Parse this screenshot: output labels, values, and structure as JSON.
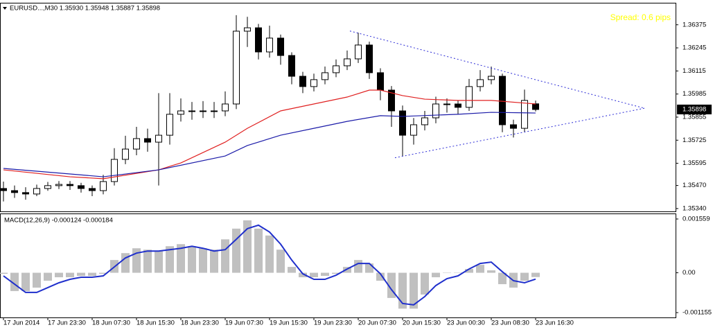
{
  "chart_data": [
    {
      "type": "candlestick",
      "title": "EURUSD...,M30  1.35930 1.35948 1.35887 1.35898",
      "annotation": "Spread: 0.6 pips",
      "annotation_color": "#ffff00",
      "x": [
        0,
        4,
        8,
        12,
        16,
        20,
        24,
        28,
        32,
        36,
        40,
        44,
        48,
        52,
        56,
        60,
        64,
        68,
        72,
        76,
        80,
        84,
        88,
        92,
        96,
        100,
        104,
        108,
        112,
        116,
        120,
        124,
        128,
        132,
        136,
        140,
        144,
        148,
        152,
        156,
        160,
        164,
        168,
        172,
        176,
        180,
        184,
        188,
        192
      ],
      "open": [
        1.35453,
        1.35441,
        1.3543,
        1.35422,
        1.35453,
        1.35469,
        1.35476,
        1.35469,
        1.35453,
        1.35441,
        1.35492,
        1.35617,
        1.35675,
        1.35734,
        1.35714,
        1.35753,
        1.35871,
        1.3589,
        1.3589,
        1.3589,
        1.3589,
        1.35929,
        1.36339,
        1.36358,
        1.36222,
        1.363,
        1.36202,
        1.36085,
        1.36027,
        1.36066,
        1.36105,
        1.36144,
        1.36183,
        1.36261,
        1.36105,
        1.36007,
        1.3589,
        1.35753,
        1.35812,
        1.35851,
        1.35929,
        1.35929,
        1.3591,
        1.36027,
        1.36066,
        1.36085,
        1.35812,
        1.35792,
        1.3593
      ],
      "high": [
        1.35492,
        1.3547,
        1.3546,
        1.35475,
        1.3549,
        1.35495,
        1.35495,
        1.35485,
        1.3547,
        1.3553,
        1.3568,
        1.3575,
        1.358,
        1.3579,
        1.3599,
        1.3599,
        1.3596,
        1.3594,
        1.35945,
        1.3594,
        1.36,
        1.36429,
        1.3642,
        1.3638,
        1.3637,
        1.3632,
        1.3622,
        1.3611,
        1.361,
        1.3614,
        1.3618,
        1.3623,
        1.3633,
        1.3628,
        1.3613,
        1.3603,
        1.3592,
        1.3585,
        1.3589,
        1.3597,
        1.3596,
        1.3595,
        1.3607,
        1.3612,
        1.3614,
        1.361,
        1.3584,
        1.3601,
        1.35948
      ],
      "low": [
        1.3538,
        1.354,
        1.3539,
        1.3541,
        1.3544,
        1.3545,
        1.35445,
        1.3543,
        1.3541,
        1.3542,
        1.3547,
        1.3559,
        1.3564,
        1.3566,
        1.3547,
        1.357,
        1.3583,
        1.3584,
        1.3585,
        1.3585,
        1.3586,
        1.359,
        1.3625,
        1.3618,
        1.3619,
        1.3615,
        1.3604,
        1.3599,
        1.36,
        1.3604,
        1.3608,
        1.3612,
        1.3616,
        1.3607,
        1.3595,
        1.358,
        1.35636,
        1.357,
        1.3578,
        1.3582,
        1.3588,
        1.3587,
        1.3589,
        1.36,
        1.3604,
        1.3577,
        1.3574,
        1.3577,
        1.35887
      ],
      "close": [
        1.35441,
        1.3543,
        1.35422,
        1.35453,
        1.35469,
        1.35476,
        1.35469,
        1.35453,
        1.35441,
        1.35492,
        1.35617,
        1.35675,
        1.35734,
        1.35714,
        1.35753,
        1.35871,
        1.3589,
        1.3589,
        1.3589,
        1.3589,
        1.35929,
        1.36339,
        1.36358,
        1.36222,
        1.363,
        1.36202,
        1.36085,
        1.36027,
        1.36066,
        1.36105,
        1.36144,
        1.36183,
        1.36261,
        1.36105,
        1.36007,
        1.3589,
        1.35753,
        1.35812,
        1.35851,
        1.35929,
        1.35929,
        1.3591,
        1.36027,
        1.36066,
        1.36085,
        1.35812,
        1.35792,
        1.35949,
        1.35898
      ],
      "moving_averages": [
        {
          "color": "#e02020",
          "x": [
            0,
            24,
            36,
            56,
            64,
            80,
            88,
            100,
            112,
            124,
            132,
            136,
            144,
            152,
            164,
            176,
            192
          ],
          "values": [
            1.35558,
            1.35519,
            1.35508,
            1.35558,
            1.35597,
            1.35714,
            1.35792,
            1.3589,
            1.35929,
            1.35968,
            1.36007,
            1.36007,
            1.35976,
            1.35956,
            1.35949,
            1.35949,
            1.35929
          ]
        },
        {
          "color": "#1a1aa8",
          "x": [
            0,
            36,
            56,
            80,
            88,
            100,
            112,
            124,
            136,
            144,
            164,
            176,
            192
          ],
          "values": [
            1.35566,
            1.35519,
            1.35558,
            1.35636,
            1.35695,
            1.35753,
            1.35792,
            1.35831,
            1.35863,
            1.35859,
            1.35871,
            1.35882,
            1.35878
          ]
        }
      ],
      "trendlines": [
        {
          "color": "#2b2bd6",
          "x": [
            125,
            231.25
          ],
          "values": [
            1.3634,
            1.35905
          ]
        },
        {
          "color": "#2b2bd6",
          "x": [
            141.25,
            231.25
          ],
          "values": [
            1.35626,
            1.35905
          ]
        }
      ],
      "current_price": 1.35898,
      "xlim": [
        -1.25,
        242.5
      ],
      "ylim": [
        1.35324,
        1.36495
      ],
      "yticks": [
        1.36375,
        1.36245,
        1.36115,
        1.35985,
        1.35855,
        1.35725,
        1.35595,
        {
          "value": 1.3547,
          "label": "1.35470"
        },
        {
          "value": 1.3534,
          "label": "1.35340"
        }
      ]
    },
    {
      "type": "macd",
      "title": "MACD(12,26,9) -0.000124 -0.000184",
      "x": [
        0,
        4,
        8,
        12,
        16,
        20,
        24,
        28,
        32,
        36,
        40,
        44,
        48,
        52,
        56,
        60,
        64,
        68,
        72,
        76,
        80,
        84,
        88,
        92,
        96,
        100,
        104,
        108,
        112,
        116,
        120,
        124,
        128,
        132,
        136,
        140,
        144,
        148,
        152,
        156,
        160,
        164,
        168,
        172,
        176,
        180,
        184,
        188,
        192
      ],
      "histogram": {
        "color": "#c0c0c0",
        "values": [
          -3e-05,
          -0.00053,
          -0.00053,
          -0.00043,
          -0.00023,
          -0.00013,
          -0.00013,
          -9e-05,
          -9e-05,
          -3e-05,
          0.00037,
          0.00057,
          0.00071,
          0.00067,
          0.00063,
          0.00077,
          0.00083,
          0.00077,
          0.00071,
          0.00067,
          0.00097,
          0.00128,
          0.00152,
          0.00128,
          0.00108,
          0.00067,
          0.00017,
          -0.00013,
          -0.00013,
          -9e-05,
          -3e-05,
          0.00017,
          0.00037,
          0.00027,
          -0.00023,
          -0.00073,
          -0.00104,
          -0.00104,
          -0.00063,
          -0.00013,
          1e-05,
          1e-05,
          0.00011,
          0.00023,
          7e-05,
          -0.00033,
          -0.00043,
          -0.00023,
          -0.000124
        ]
      },
      "signal": {
        "color": "#1f2fcc",
        "values": [
          -9e-05,
          -0.00033,
          -0.00057,
          -0.00057,
          -0.00043,
          -0.00029,
          -0.00019,
          -0.00013,
          -0.00013,
          -9e-05,
          0.00017,
          0.00043,
          0.00057,
          0.00063,
          0.00063,
          0.00067,
          0.00071,
          0.00077,
          0.00071,
          0.00063,
          0.00067,
          0.00097,
          0.00128,
          0.00138,
          0.00118,
          0.00083,
          0.00037,
          -3e-05,
          -0.00019,
          -0.00019,
          -7e-05,
          0.00011,
          0.00027,
          0.00027,
          -3e-05,
          -0.00049,
          -0.00089,
          -0.00093,
          -0.00069,
          -0.00037,
          -0.00017,
          -9e-05,
          0.00011,
          0.00027,
          0.00031,
          3e-05,
          -0.00023,
          -0.00029,
          -0.000184
        ]
      },
      "xlim": [
        -1.25,
        242.5
      ],
      "ylim": [
        -0.001295,
        0.001719
      ],
      "yticks": [
        0.001559,
        {
          "value": 0,
          "label": "0.00"
        },
        -0.001155
      ],
      "xticks": [
        {
          "value": 0,
          "label": "17 Jun 2014"
        },
        {
          "value": 16,
          "label": "17 Jun 23:30"
        },
        {
          "value": 32,
          "label": "18 Jun 07:30"
        },
        {
          "value": 48,
          "label": "18 Jun 15:30"
        },
        {
          "value": 64,
          "label": "18 Jun 23:30"
        },
        {
          "value": 80,
          "label": "19 Jun 07:30"
        },
        {
          "value": 96,
          "label": "19 Jun 15:30"
        },
        {
          "value": 112,
          "label": "19 Jun 23:30"
        },
        {
          "value": 128,
          "label": "20 Jun 07:30"
        },
        {
          "value": 144,
          "label": "20 Jun 15:30"
        },
        {
          "value": 160,
          "label": "23 Jun 00:30"
        },
        {
          "value": 176,
          "label": "23 Jun 08:30"
        },
        {
          "value": 192,
          "label": "23 Jun 16:30"
        }
      ]
    }
  ]
}
